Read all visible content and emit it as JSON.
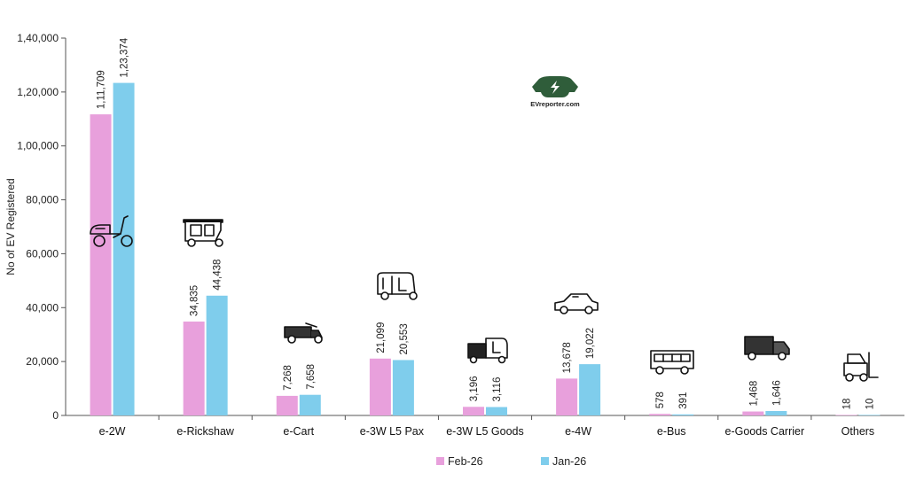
{
  "chart_data": {
    "type": "bar",
    "title": "",
    "xlabel": "",
    "ylabel": "No of EV Registered",
    "ylim": [
      0,
      140000
    ],
    "yticks": [
      "0",
      "20,000",
      "40,000",
      "60,000",
      "80,000",
      "1,00,000",
      "1,20,000",
      "1,40,000"
    ],
    "ytick_values": [
      0,
      20000,
      40000,
      60000,
      80000,
      100000,
      120000,
      140000
    ],
    "categories": [
      "e-2W",
      "e-Rickshaw",
      "e-Cart",
      "e-3W L5 Pax",
      "e-3W L5 Goods",
      "e-4W",
      "e-Bus",
      "e-Goods Carrier",
      "Others"
    ],
    "series": [
      {
        "name": "Feb-26",
        "color": "#e8a0dc",
        "values": [
          111709,
          34835,
          7268,
          21099,
          3196,
          13678,
          578,
          1468,
          18
        ],
        "labels": [
          "1,11,709",
          "34,835",
          "7,268",
          "21,099",
          "3,196",
          "13,678",
          "578",
          "1,468",
          "18"
        ]
      },
      {
        "name": "Jan-26",
        "color": "#7fcdec",
        "values": [
          123374,
          44438,
          7658,
          20553,
          3116,
          19022,
          391,
          1646,
          10
        ],
        "labels": [
          "1,23,374",
          "44,438",
          "7,658",
          "20,553",
          "3,116",
          "19,022",
          "391",
          "1,646",
          "10"
        ]
      }
    ],
    "icons": [
      "scooter-icon",
      "auto-rickshaw-icon",
      "cart-icon",
      "passenger-three-wheeler-icon",
      "goods-three-wheeler-icon",
      "car-icon",
      "bus-icon",
      "truck-icon",
      "forklift-icon"
    ],
    "legend_position": "bottom-center",
    "grid": false
  },
  "logo": {
    "text": "EVreporter.com",
    "color": "#2f5d3a"
  }
}
